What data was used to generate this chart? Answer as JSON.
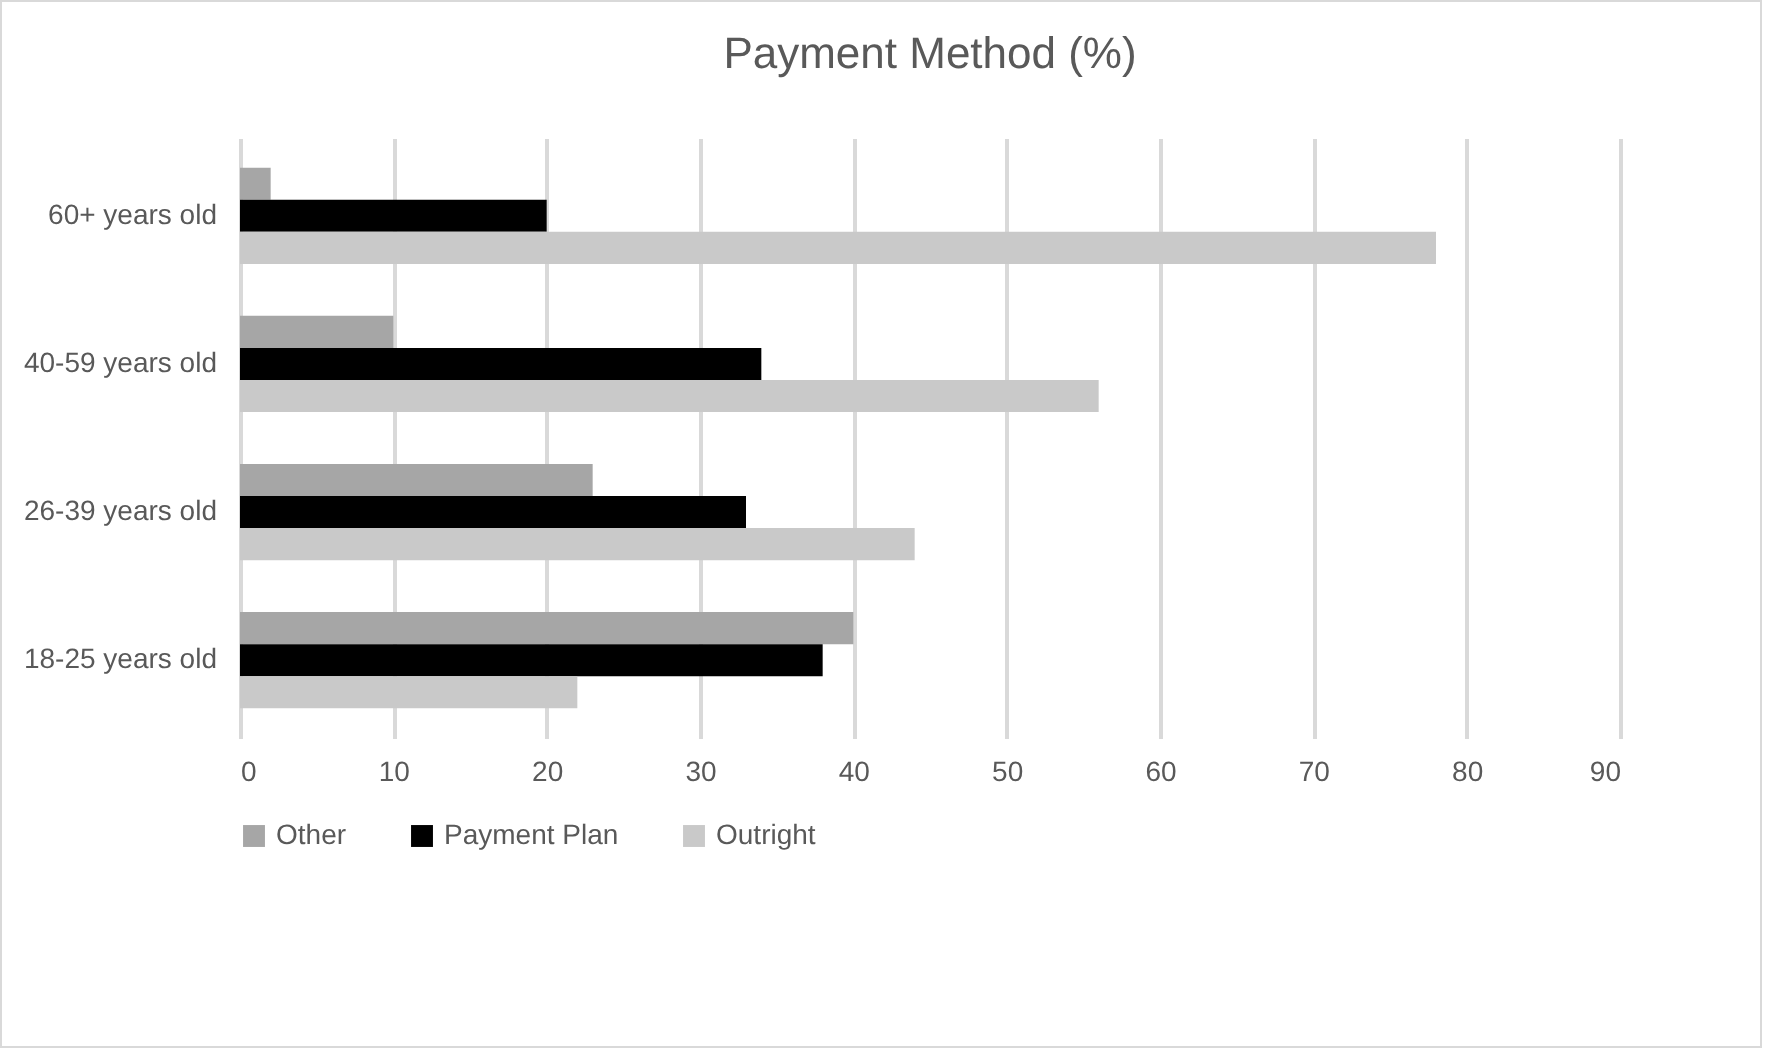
{
  "chart_data": {
    "type": "bar",
    "orientation": "horizontal",
    "title": "Payment Method (%)",
    "categories": [
      "60+ years old",
      "40-59 years old",
      "26-39 years old",
      "18-25 years old"
    ],
    "series": [
      {
        "name": "Other",
        "color": "#a6a6a6",
        "values": [
          2,
          10,
          23,
          40
        ]
      },
      {
        "name": "Payment Plan",
        "color": "#000000",
        "values": [
          20,
          34,
          33,
          38
        ]
      },
      {
        "name": "Outright",
        "color": "#c9c9c9",
        "values": [
          78,
          56,
          44,
          22
        ]
      }
    ],
    "xlim": [
      0,
      90
    ],
    "xticks": [
      0,
      10,
      20,
      30,
      40,
      50,
      60,
      70,
      80,
      90
    ],
    "grid": "x",
    "legend": "bottom"
  }
}
